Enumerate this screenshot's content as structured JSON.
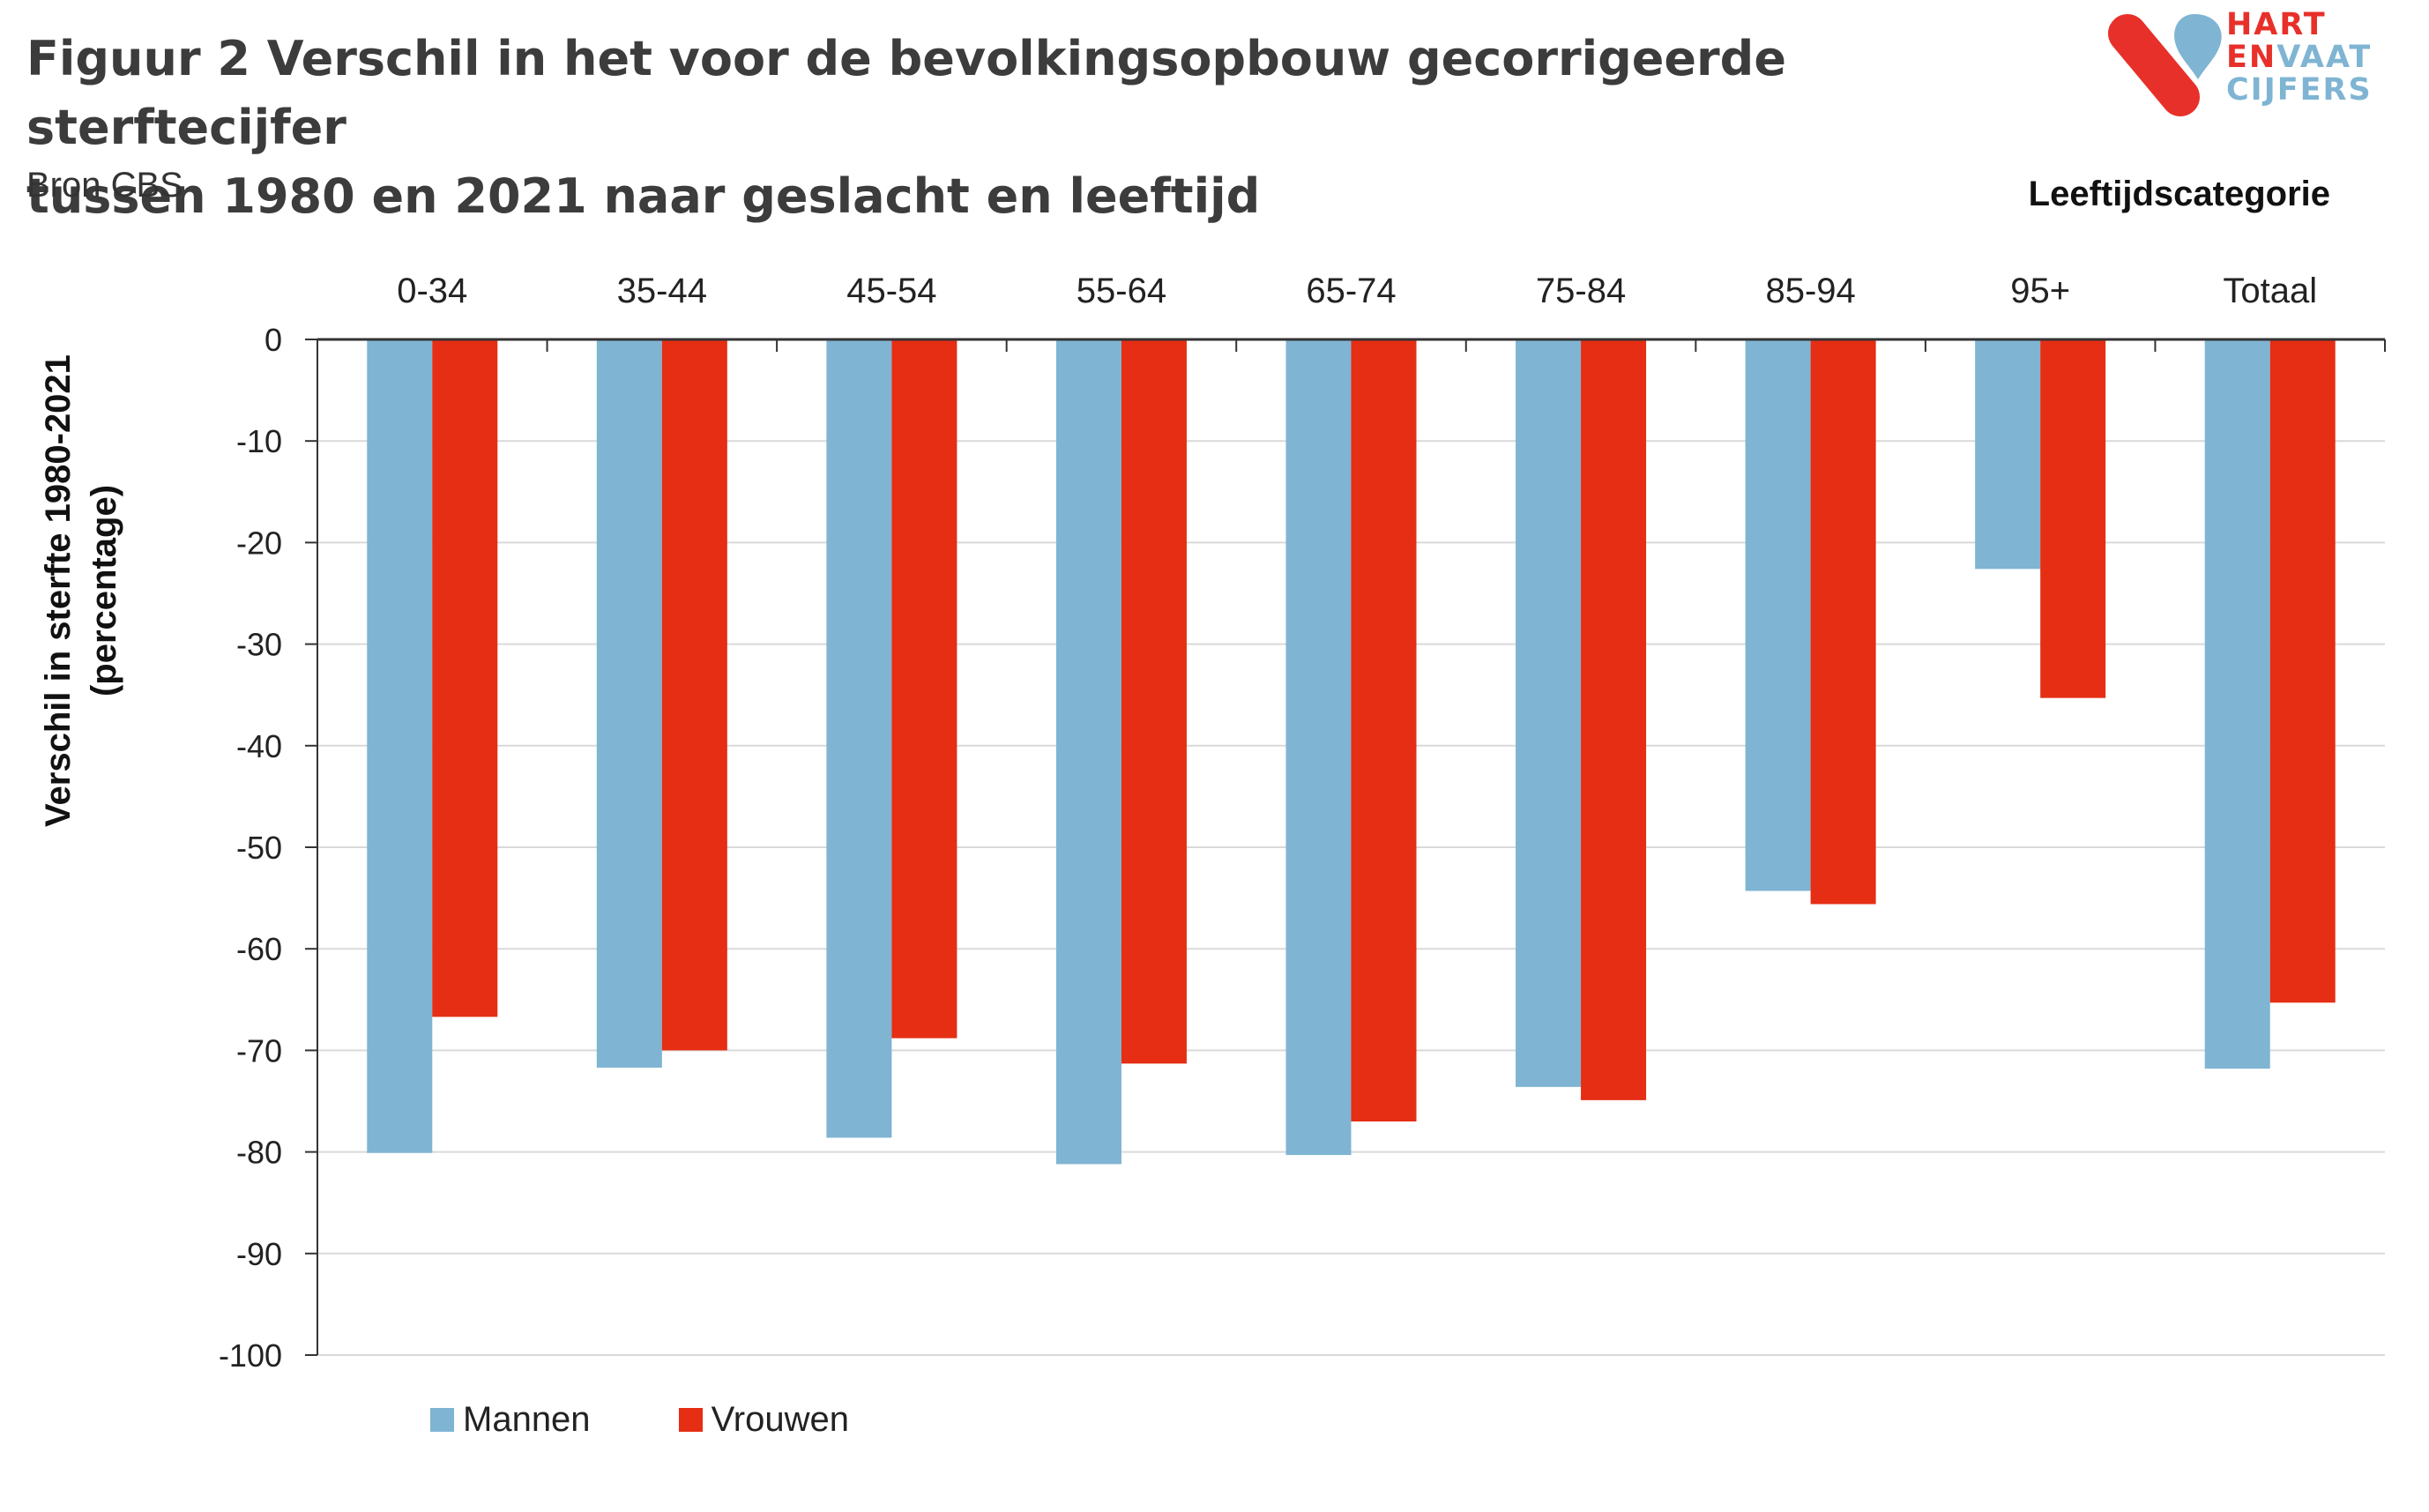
{
  "title_line1": "Figuur 2 Verschil in het voor de bevolkingsopbouw gecorrigeerde sterftecijfer",
  "title_line2": "tussen 1980 en 2021 naar geslacht en leeftijd",
  "source": "Bron CBS",
  "logo": {
    "line1": "HART",
    "line2a": "EN",
    "line2b": "VAAT",
    "line3": "CIJFERS",
    "colors": {
      "red": "#e8302a",
      "blue": "#7fb4d3"
    }
  },
  "chart_data": {
    "type": "bar",
    "title": "Figuur 2 Verschil in het voor de bevolkingsopbouw gecorrigeerde sterftecijfer tussen 1980 en 2021 naar geslacht en leeftijd",
    "xlabel": "Leeftijdscategorie",
    "ylabel_line1": "Verschil in sterfte  1980-2021",
    "ylabel_line2": "(percentage)",
    "categories": [
      "0-34",
      "35-44",
      "45-54",
      "55-64",
      "65-74",
      "75-84",
      "85-94",
      "95+",
      "Totaal"
    ],
    "series": [
      {
        "name": "Mannen",
        "color": "#7fb4d3",
        "values": [
          -80.1,
          -71.7,
          -78.6,
          -81.2,
          -80.3,
          -73.6,
          -54.3,
          -22.6,
          -71.8
        ]
      },
      {
        "name": "Vrouwen",
        "color": "#e52e14",
        "values": [
          -66.7,
          -70.0,
          -68.8,
          -71.3,
          -77.0,
          -74.9,
          -55.6,
          -35.3,
          -65.3
        ]
      }
    ],
    "ylim": [
      -100,
      0
    ],
    "yticks": [
      0,
      -10,
      -20,
      -30,
      -40,
      -50,
      -60,
      -70,
      -80,
      -90,
      -100
    ],
    "grid": true,
    "legend_position": "bottom-left",
    "category_label_position": "top"
  }
}
